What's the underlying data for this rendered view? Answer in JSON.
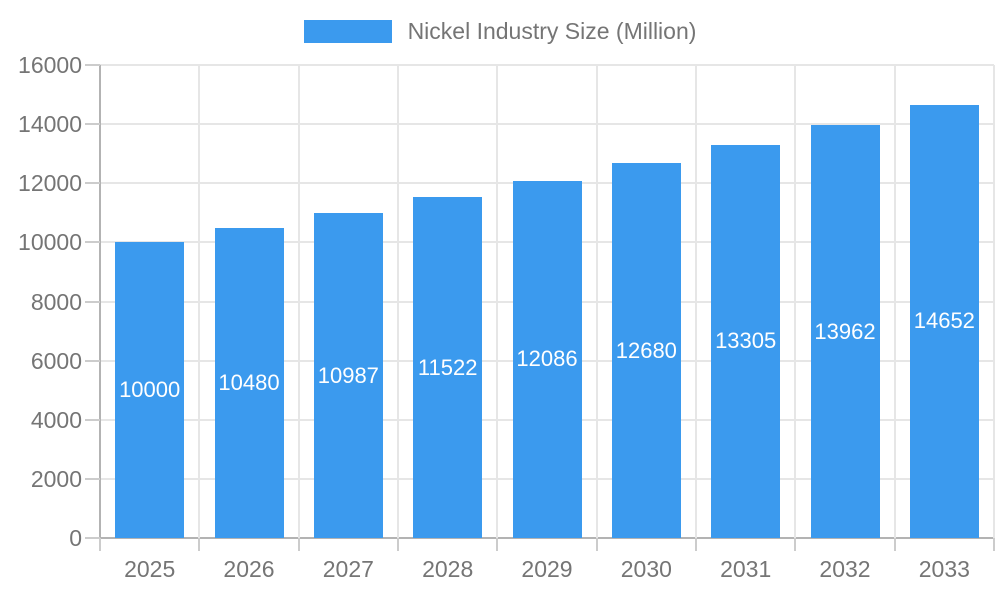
{
  "chart_data": {
    "type": "bar",
    "title": "Nickel Industry Size (Million)",
    "legend": {
      "position": "top",
      "label": "Nickel Industry Size (Million)"
    },
    "categories": [
      "2025",
      "2026",
      "2027",
      "2028",
      "2029",
      "2030",
      "2031",
      "2032",
      "2033"
    ],
    "series": [
      {
        "name": "Nickel Industry Size (Million)",
        "values": [
          10000,
          10480,
          10987,
          11522,
          12086,
          12680,
          13305,
          13962,
          14652
        ]
      }
    ],
    "bar_labels": [
      "10000",
      "10480",
      "10987",
      "11522",
      "12086",
      "12680",
      "13305",
      "13962",
      "14652"
    ],
    "xlabel": "",
    "ylabel": "",
    "ylim": [
      0,
      16000
    ],
    "y_ticks": [
      0,
      2000,
      4000,
      6000,
      8000,
      10000,
      12000,
      14000,
      16000
    ],
    "y_tick_labels": [
      "0",
      "2000",
      "4000",
      "6000",
      "8000",
      "10000",
      "12000",
      "14000",
      "16000"
    ],
    "grid": true,
    "colors": {
      "bar": "#3b9aee",
      "bar_label": "#ffffff",
      "axis_text": "#757575",
      "gridline": "#e6e6e6",
      "axis_line": "#b3b3b3",
      "tick": "#cccccc",
      "background": "#ffffff"
    }
  }
}
